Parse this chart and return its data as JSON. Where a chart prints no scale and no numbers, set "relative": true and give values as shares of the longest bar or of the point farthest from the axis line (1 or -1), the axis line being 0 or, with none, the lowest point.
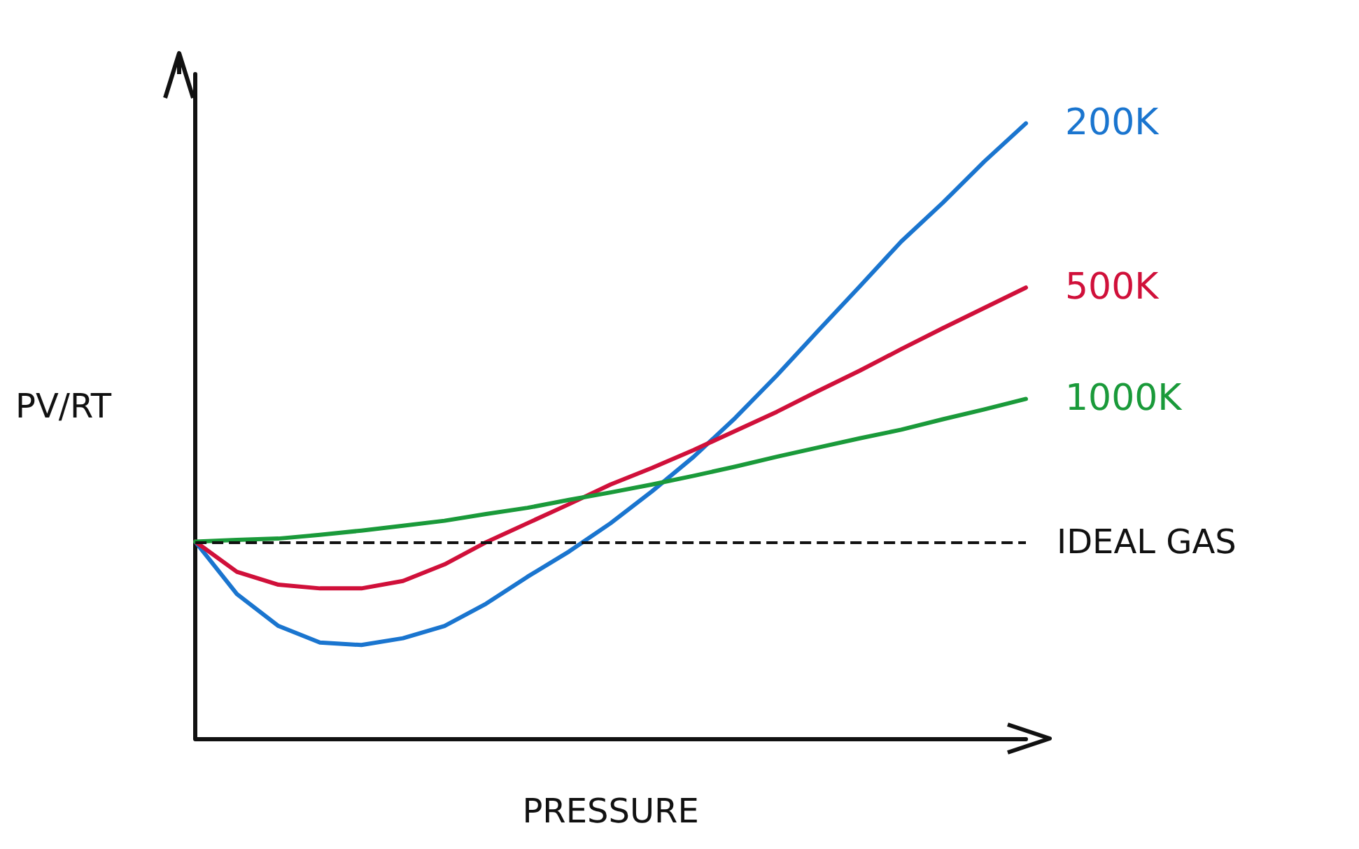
{
  "chart_data": {
    "type": "line",
    "relative": true,
    "xlabel": "PRESSURE",
    "ylabel": "PV/RT",
    "marker": "none",
    "legend": false,
    "grid": false,
    "categories": [
      null,
      null,
      null,
      null,
      null,
      null,
      null,
      null,
      null,
      null,
      null,
      null,
      null,
      null,
      null,
      null,
      null,
      null,
      null,
      null,
      null
    ],
    "series": [
      {
        "name": "200K",
        "color": "#1a75cf",
        "values": [
          0.32,
          0.235,
          0.183,
          0.156,
          0.152,
          0.163,
          0.183,
          0.219,
          0.263,
          0.304,
          0.35,
          0.402,
          0.458,
          0.521,
          0.59,
          0.663,
          0.735,
          0.808,
          0.871,
          0.938,
          1.0
        ]
      },
      {
        "name": "500K",
        "color": "#d0103a",
        "values": [
          0.32,
          0.271,
          0.25,
          0.244,
          0.244,
          0.256,
          0.283,
          0.319,
          0.35,
          0.381,
          0.413,
          0.44,
          0.469,
          0.5,
          0.531,
          0.565,
          0.598,
          0.633,
          0.667,
          0.7,
          0.733
        ]
      },
      {
        "name": "1000K",
        "color": "#1a9a3a",
        "values": [
          0.32,
          0.323,
          0.325,
          0.331,
          0.338,
          0.346,
          0.354,
          0.365,
          0.375,
          0.388,
          0.4,
          0.413,
          0.427,
          0.442,
          0.458,
          0.473,
          0.488,
          0.502,
          0.519,
          0.535,
          0.552
        ]
      }
    ],
    "ref_lines": [
      {
        "axis": "y",
        "value": 0.32,
        "label": "IDEAL GAS",
        "color": "#111111",
        "line_style": "dashed"
      }
    ]
  }
}
